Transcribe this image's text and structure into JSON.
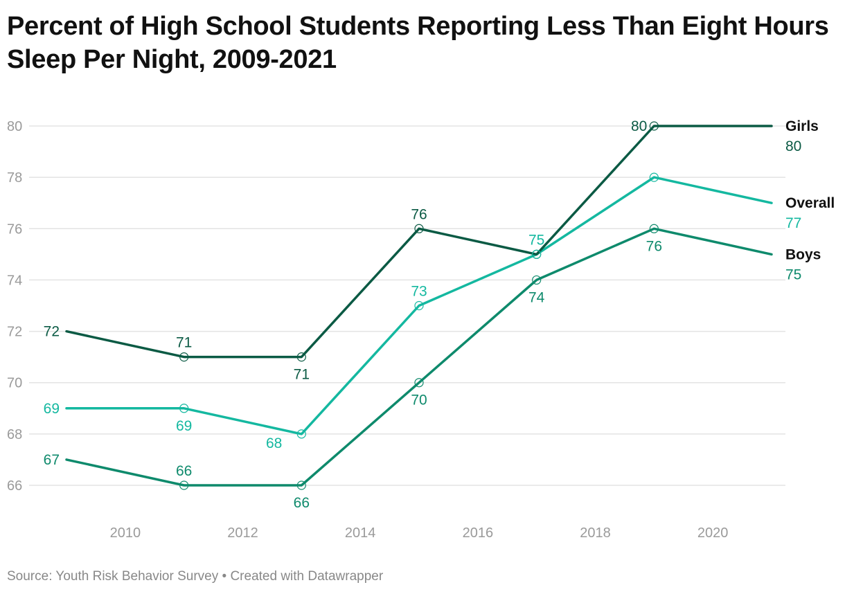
{
  "title": "Percent of High School Students Reporting Less Than Eight Hours Sleep Per Night, 2009-2021",
  "footer": {
    "source": "Source: Youth Risk Behavior Survey",
    "separator": " • ",
    "credit": "Created with Datawrapper"
  },
  "chart_data": {
    "type": "line",
    "title": "Percent of High School Students Reporting Less Than Eight Hours Sleep Per Night, 2009-2021",
    "xlabel": "",
    "ylabel": "",
    "x": [
      2009,
      2011,
      2013,
      2015,
      2017,
      2019,
      2021
    ],
    "xticks": [
      "2010",
      "2012",
      "2014",
      "2016",
      "2018",
      "2020"
    ],
    "yticks": [
      "66",
      "68",
      "70",
      "72",
      "74",
      "76",
      "78",
      "80"
    ],
    "xlim": [
      2009,
      2021
    ],
    "ylim": [
      66,
      80
    ],
    "grid": "horizontal",
    "legend": "direct labels at right end of lines",
    "series": [
      {
        "name": "Girls",
        "color": "#0b5a44",
        "values": [
          72,
          71,
          71,
          76,
          75,
          80,
          80
        ],
        "point_labels": [
          "72",
          "71",
          "71",
          "76",
          "",
          "80",
          ""
        ],
        "end_label": "80"
      },
      {
        "name": "Overall",
        "color": "#14b8a0",
        "values": [
          69,
          69,
          68,
          73,
          75,
          78,
          77
        ],
        "point_labels": [
          "69",
          "69",
          "68",
          "73",
          "75",
          "",
          ""
        ],
        "end_label": "77"
      },
      {
        "name": "Boys",
        "color": "#0e8a6c",
        "values": [
          67,
          66,
          66,
          70,
          74,
          76,
          75
        ],
        "point_labels": [
          "67",
          "66",
          "66",
          "70",
          "74",
          "76",
          ""
        ],
        "end_label": "75"
      }
    ]
  }
}
